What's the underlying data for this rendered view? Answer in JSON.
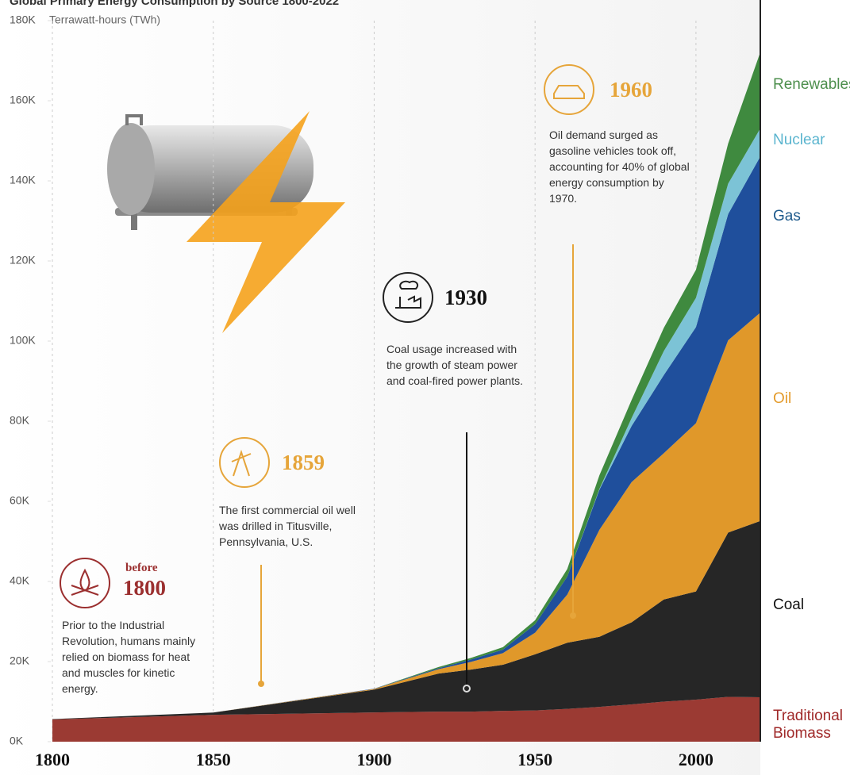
{
  "chart_data": {
    "type": "stacked_area",
    "title": "Global Primary Energy Consumption by Source 1800-2022",
    "y_axis_label": "Terrawatt-hours (TWh)",
    "x": [
      1800,
      1850,
      1900,
      1920,
      1930,
      1940,
      1950,
      1960,
      1970,
      1980,
      1990,
      2000,
      2010,
      2020
    ],
    "series": [
      {
        "name": "Traditional Biomass",
        "color": "#9b3a33",
        "values": [
          5556,
          6700,
          7300,
          7500,
          7500,
          7700,
          7800,
          8200,
          8700,
          9300,
          10000,
          10500,
          11200,
          11100
        ]
      },
      {
        "name": "Coal",
        "color": "#262626",
        "values": [
          97,
          570,
          5700,
          9500,
          10500,
          11500,
          14000,
          16500,
          17500,
          20500,
          25500,
          27000,
          41000,
          44000
        ]
      },
      {
        "name": "Oil",
        "color": "#e0982a",
        "values": [
          0,
          0,
          180,
          1100,
          1900,
          2900,
          5400,
          12000,
          26700,
          35000,
          36500,
          42000,
          48000,
          52000
        ]
      },
      {
        "name": "Gas",
        "color": "#1f4f9c",
        "values": [
          0,
          0,
          64,
          230,
          600,
          880,
          2100,
          4500,
          10000,
          14000,
          19500,
          24000,
          31500,
          39000
        ]
      },
      {
        "name": "Nuclear",
        "color": "#7cc3d6",
        "values": [
          0,
          0,
          0,
          0,
          0,
          0,
          0,
          0,
          200,
          2000,
          6000,
          7300,
          7600,
          7000
        ]
      },
      {
        "name": "Renewables",
        "color": "#3f8a3f",
        "values": [
          0,
          0,
          0,
          300,
          400,
          600,
          1000,
          1900,
          3400,
          4500,
          5800,
          7000,
          10000,
          19000
        ]
      }
    ],
    "legend_colors": [
      "#a02a2a",
      "#111111",
      "#e49b2b",
      "#1e5a8c",
      "#5bb5cf",
      "#4d8f4d"
    ],
    "xlim": [
      1800,
      2020
    ],
    "xticks": [
      1800,
      1850,
      1900,
      1950,
      2000
    ],
    "ylim": [
      0,
      180000
    ],
    "yticks": [
      {
        "value": 0,
        "label": "0K"
      },
      {
        "value": 20000,
        "label": "20K"
      },
      {
        "value": 40000,
        "label": "40K"
      },
      {
        "value": 60000,
        "label": "60K"
      },
      {
        "value": 80000,
        "label": "80K"
      },
      {
        "value": 100000,
        "label": "100K"
      },
      {
        "value": 120000,
        "label": "120K"
      },
      {
        "value": 140000,
        "label": "140K"
      },
      {
        "value": 160000,
        "label": "160K"
      },
      {
        "value": 180000,
        "label": "180K"
      }
    ],
    "grid": "x",
    "annotations": [
      {
        "prefix": "before",
        "year": "1800",
        "text": "Prior to the Industrial Revolution, humans mainly relied on biomass for heat and muscles for kinetic energy."
      },
      {
        "year": "1859",
        "text": "The first commercial oil well was drilled in Titusville, Pennsylvania, U.S."
      },
      {
        "year": "1930",
        "text": "Coal usage increased with the growth of steam power and coal-fired power plants."
      },
      {
        "year": "1960",
        "text": "Oil demand surged as gasoline vehicles took off, accounting for 40% of global energy consumption by 1970."
      }
    ]
  }
}
